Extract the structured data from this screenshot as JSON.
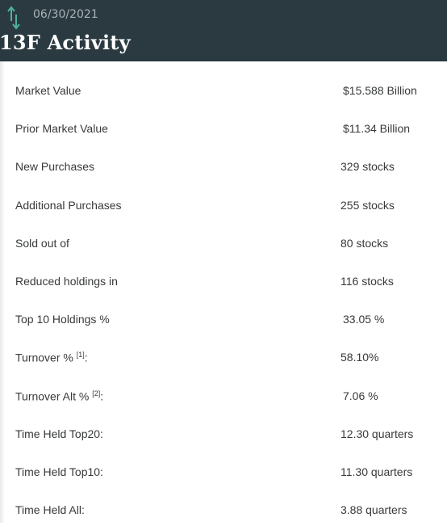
{
  "header": {
    "date": "06/30/2021",
    "title": "13F Activity",
    "icon": "sort-arrows-icon",
    "icon_color": "#4fb39a"
  },
  "rows": [
    {
      "label": "Market Value",
      "sup": "",
      "suffix": "",
      "value": "$15.588 Billion"
    },
    {
      "label": "Prior Market Value",
      "sup": "",
      "suffix": "",
      "value": "$11.34 Billion"
    },
    {
      "label": "New Purchases",
      "sup": "",
      "suffix": "",
      "value": "329 stocks"
    },
    {
      "label": "Additional Purchases",
      "sup": "",
      "suffix": "",
      "value": "255 stocks"
    },
    {
      "label": "Sold out of",
      "sup": "",
      "suffix": "",
      "value": "80 stocks"
    },
    {
      "label": "Reduced holdings in",
      "sup": "",
      "suffix": "",
      "value": "116 stocks"
    },
    {
      "label": "Top 10 Holdings %",
      "sup": "",
      "suffix": "",
      "value": "33.05 %"
    },
    {
      "label": "Turnover % ",
      "sup": "[1]",
      "suffix": ":",
      "value": "58.10%"
    },
    {
      "label": "Turnover Alt % ",
      "sup": "[2]",
      "suffix": ":",
      "value": "7.06 %"
    },
    {
      "label": "Time Held Top20:",
      "sup": "",
      "suffix": "",
      "value": "12.30 quarters"
    },
    {
      "label": "Time Held Top10:",
      "sup": "",
      "suffix": "",
      "value": "11.30 quarters"
    },
    {
      "label": "Time Held All:",
      "sup": "",
      "suffix": "",
      "value": "3.88 quarters"
    }
  ]
}
